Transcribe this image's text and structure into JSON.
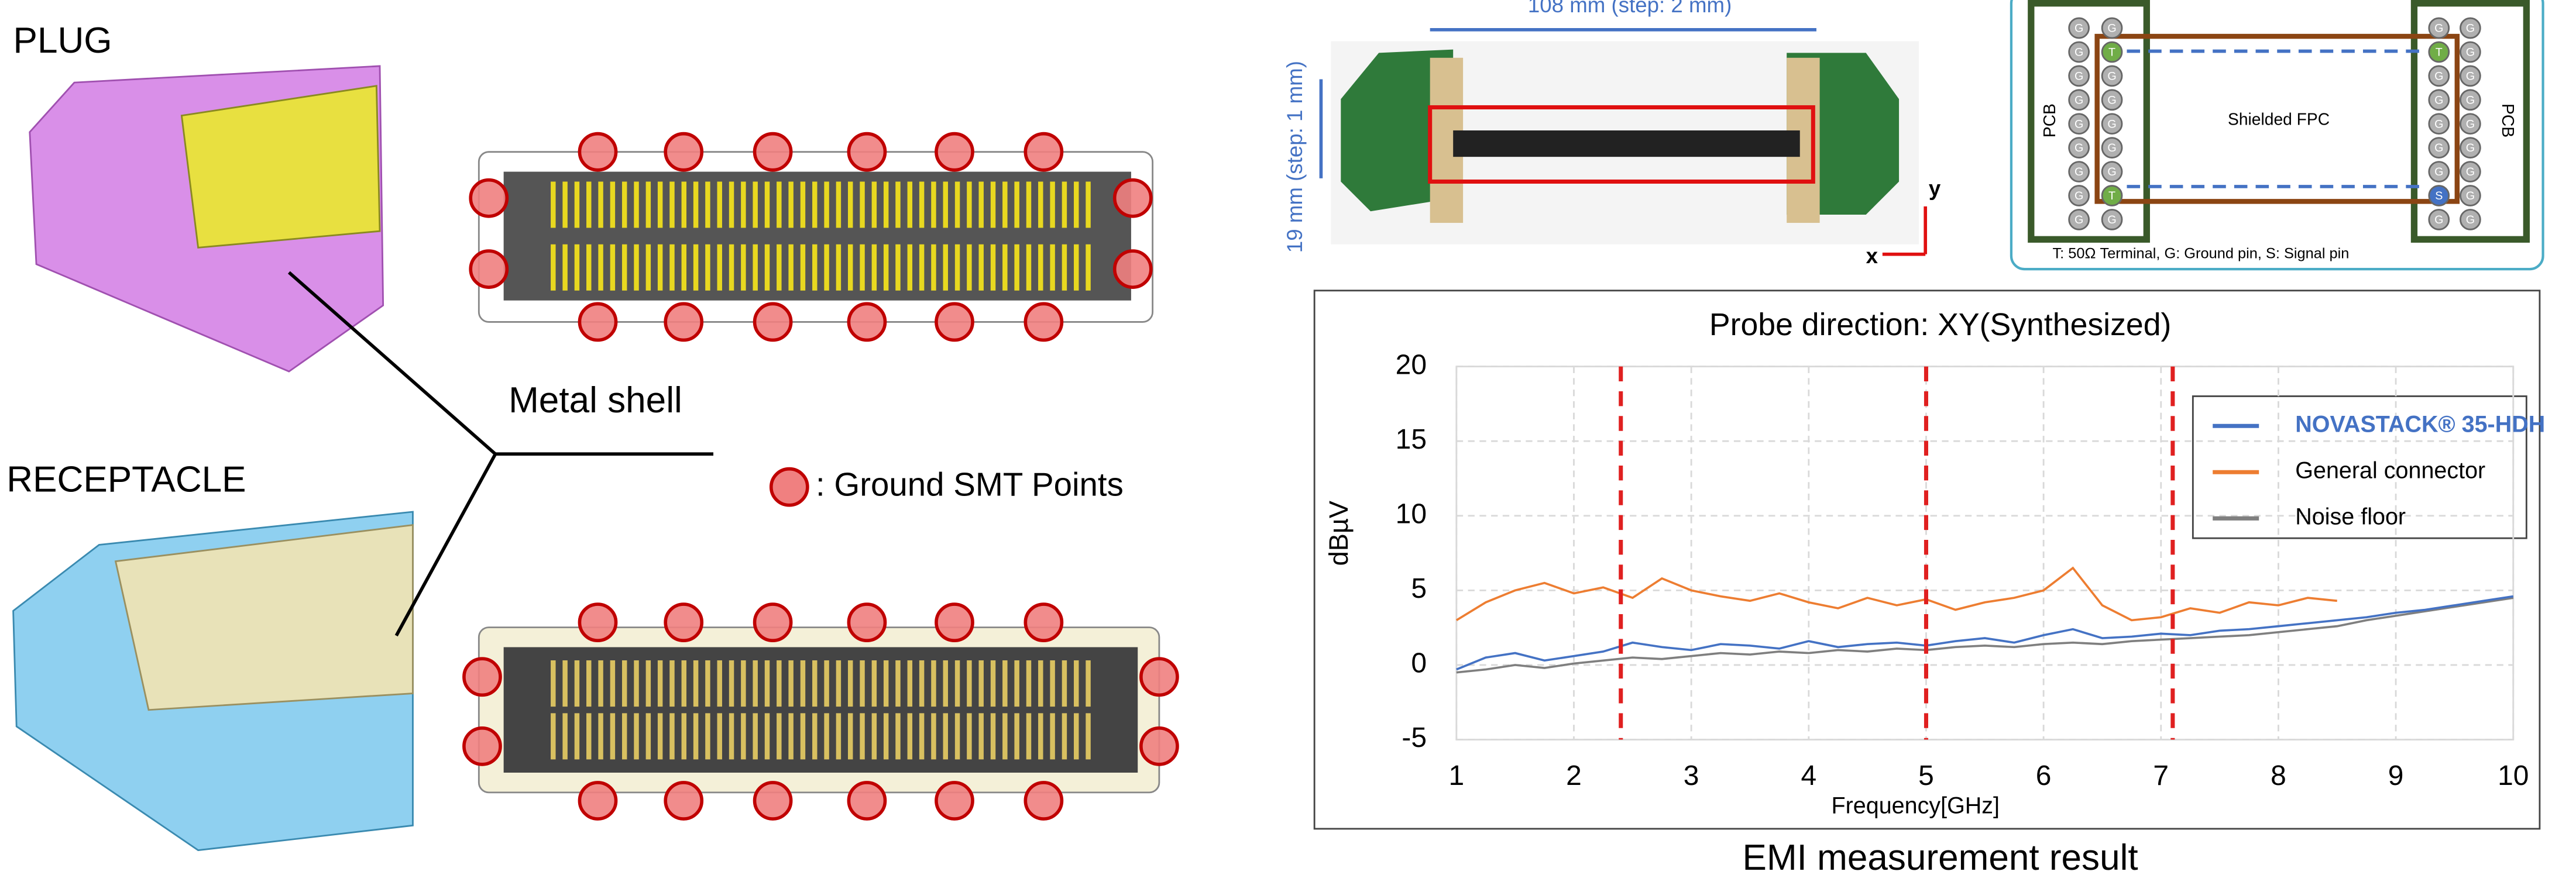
{
  "labels": {
    "plug": "PLUG",
    "receptacle": "RECEPTACLE",
    "metal_shell": "Metal shell",
    "ground_points": ": Ground SMT Points"
  },
  "test_setup": {
    "length_label": "108 mm (step: 2 mm)",
    "width_label": "19 mm (step: 1 mm)",
    "axis_x": "x",
    "axis_y": "y"
  },
  "pin_diagram": {
    "left_label": "PCB",
    "right_label": "PCB",
    "cable_label": "Shielded FPC",
    "caption": "T: 50Ω Terminal, G: Ground pin, S: Signal pin",
    "left_pins": [
      [
        "G",
        "G",
        "G",
        "G",
        "G",
        "G",
        "G",
        "G",
        "G"
      ],
      [
        "G",
        "T",
        "G",
        "G",
        "G",
        "G",
        "G",
        "T",
        "G"
      ]
    ],
    "right_pins": [
      [
        "G",
        "T",
        "G",
        "G",
        "G",
        "G",
        "G",
        "S",
        "G"
      ],
      [
        "G",
        "G",
        "G",
        "G",
        "G",
        "G",
        "G",
        "G",
        "G"
      ]
    ]
  },
  "chart_data": {
    "type": "line",
    "title": "Probe direction: XY(Synthesized)",
    "caption": "EMI measurement result",
    "x_label": "Frequency[GHz]",
    "y_label": "dBµV",
    "x": [
      1,
      1.25,
      1.5,
      1.75,
      2,
      2.25,
      2.5,
      2.75,
      3,
      3.25,
      3.5,
      3.75,
      4,
      4.25,
      4.5,
      4.75,
      5,
      5.25,
      5.5,
      5.75,
      6,
      6.25,
      6.5,
      6.75,
      7,
      7.25,
      7.5,
      7.75,
      8,
      8.25,
      8.5,
      8.75,
      9,
      9.25,
      9.5,
      9.75,
      10
    ],
    "series": [
      {
        "name": "NOVASTACK® 35-HDH",
        "color": "#4472c4",
        "values": [
          -0.3,
          0.5,
          0.8,
          0.3,
          0.6,
          0.9,
          1.5,
          1.2,
          1.0,
          1.4,
          1.3,
          1.1,
          1.6,
          1.2,
          1.4,
          1.5,
          1.3,
          1.6,
          1.8,
          1.5,
          2.0,
          2.4,
          1.8,
          1.9,
          2.1,
          2.0,
          2.3,
          2.4,
          2.6,
          2.8,
          3.0,
          3.2,
          3.5,
          3.7,
          4.0,
          4.3,
          4.6
        ]
      },
      {
        "name": "General connector",
        "color": "#ed7d31",
        "values": [
          3.0,
          4.2,
          5.0,
          5.5,
          4.8,
          5.2,
          4.5,
          5.8,
          5.0,
          4.6,
          4.3,
          4.8,
          4.2,
          3.8,
          4.5,
          4.0,
          4.4,
          3.7,
          4.2,
          4.5,
          5.0,
          6.5,
          4.0,
          3.0,
          3.2,
          3.8,
          3.5,
          4.2,
          4.0,
          4.5,
          4.3,
          null,
          null,
          null,
          null,
          null,
          null
        ]
      },
      {
        "name": "Noise floor",
        "color": "#7f7f7f",
        "values": [
          -0.5,
          -0.3,
          0,
          -0.2,
          0.1,
          0.3,
          0.5,
          0.4,
          0.6,
          0.8,
          0.7,
          0.9,
          0.8,
          1.0,
          0.9,
          1.1,
          1.0,
          1.2,
          1.3,
          1.2,
          1.4,
          1.5,
          1.4,
          1.6,
          1.7,
          1.8,
          1.9,
          2.0,
          2.2,
          2.4,
          2.6,
          3.0,
          3.3,
          3.6,
          3.9,
          4.2,
          4.5
        ]
      }
    ],
    "xlim": [
      1,
      10
    ],
    "xticks": [
      1,
      2,
      3,
      4,
      5,
      6,
      7,
      8,
      9,
      10
    ],
    "ylim": [
      -5,
      20
    ],
    "yticks": [
      -5,
      0,
      5,
      10,
      15,
      20
    ],
    "grid": true,
    "vlines": [
      2.4,
      5,
      7.1
    ],
    "vline_color": "#e02020"
  }
}
